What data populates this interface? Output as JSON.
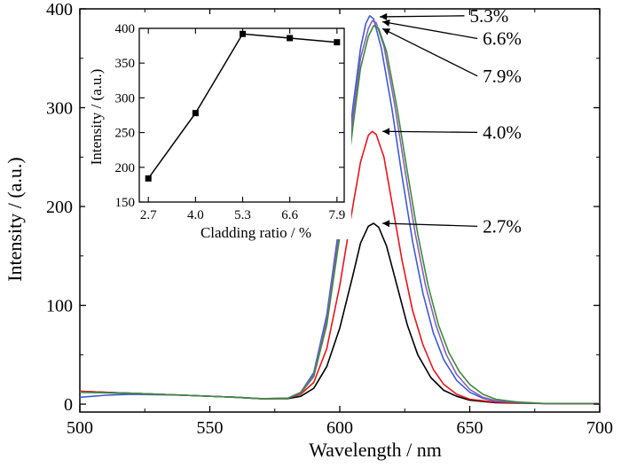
{
  "chart_data": [
    {
      "type": "line",
      "xlabel": "Wavelength / nm",
      "ylabel": "Intensity / (a.u.)",
      "xlim": [
        500,
        700
      ],
      "ylim": [
        -8,
        400
      ],
      "xticks": [
        500,
        550,
        600,
        650,
        700
      ],
      "yticks": [
        0,
        100,
        200,
        300,
        400
      ],
      "grid": false,
      "series": [
        {
          "label": "2.7%",
          "color": "#000000",
          "peak": 183,
          "points": [
            [
              500,
              13
            ],
            [
              520,
              11
            ],
            [
              540,
              9
            ],
            [
              560,
              7
            ],
            [
              570,
              5.5
            ],
            [
              580,
              5.5
            ],
            [
              585,
              8
            ],
            [
              590,
              16
            ],
            [
              595,
              38
            ],
            [
              600,
              77
            ],
            [
              605,
              130
            ],
            [
              608,
              163
            ],
            [
              611,
              180
            ],
            [
              613,
              183
            ],
            [
              615,
              179
            ],
            [
              618,
              160
            ],
            [
              622,
              120
            ],
            [
              626,
              80
            ],
            [
              630,
              50
            ],
            [
              635,
              27
            ],
            [
              640,
              14
            ],
            [
              645,
              8
            ],
            [
              650,
              4
            ],
            [
              660,
              1.5
            ],
            [
              680,
              0.5
            ],
            [
              700,
              0.5
            ]
          ]
        },
        {
          "label": "4.0%",
          "color": "#e8141c",
          "peak": 276,
          "points": [
            [
              500,
              13
            ],
            [
              520,
              11
            ],
            [
              540,
              9
            ],
            [
              560,
              7
            ],
            [
              570,
              5.5
            ],
            [
              580,
              6
            ],
            [
              585,
              10
            ],
            [
              590,
              22
            ],
            [
              595,
              56
            ],
            [
              600,
              120
            ],
            [
              605,
              200
            ],
            [
              608,
              245
            ],
            [
              611,
              272
            ],
            [
              612.5,
              276
            ],
            [
              614,
              273
            ],
            [
              617,
              250
            ],
            [
              620,
              205
            ],
            [
              624,
              145
            ],
            [
              628,
              95
            ],
            [
              632,
              60
            ],
            [
              636,
              35
            ],
            [
              640,
              20
            ],
            [
              645,
              10
            ],
            [
              650,
              5
            ],
            [
              660,
              2
            ],
            [
              680,
              0.5
            ],
            [
              700,
              0.5
            ]
          ]
        },
        {
          "label": "5.3%",
          "color": "#3c5bd6",
          "peak": 393,
          "points": [
            [
              500,
              7
            ],
            [
              505,
              8
            ],
            [
              510,
              9
            ],
            [
              520,
              10
            ],
            [
              540,
              9
            ],
            [
              560,
              7
            ],
            [
              570,
              5.5
            ],
            [
              580,
              6
            ],
            [
              585,
              12
            ],
            [
              590,
              32
            ],
            [
              595,
              90
            ],
            [
              600,
              185
            ],
            [
              605,
              300
            ],
            [
              608,
              360
            ],
            [
              610,
              385
            ],
            [
              611.5,
              393
            ],
            [
              613,
              390
            ],
            [
              616,
              360
            ],
            [
              620,
              300
            ],
            [
              624,
              230
            ],
            [
              628,
              165
            ],
            [
              632,
              112
            ],
            [
              636,
              72
            ],
            [
              640,
              45
            ],
            [
              645,
              24
            ],
            [
              650,
              12
            ],
            [
              655,
              6
            ],
            [
              660,
              3
            ],
            [
              680,
              0.5
            ],
            [
              700,
              0.5
            ]
          ]
        },
        {
          "label": "6.6%",
          "color": "#8a5fb4",
          "peak": 388,
          "points": [
            [
              500,
              12
            ],
            [
              520,
              11
            ],
            [
              540,
              9
            ],
            [
              560,
              7
            ],
            [
              570,
              5.5
            ],
            [
              580,
              6
            ],
            [
              585,
              12
            ],
            [
              590,
              30
            ],
            [
              595,
              85
            ],
            [
              600,
              178
            ],
            [
              605,
              290
            ],
            [
              608,
              350
            ],
            [
              611,
              380
            ],
            [
              612.5,
              388
            ],
            [
              614,
              386
            ],
            [
              617,
              362
            ],
            [
              621,
              305
            ],
            [
              625,
              238
            ],
            [
              629,
              173
            ],
            [
              633,
              120
            ],
            [
              637,
              80
            ],
            [
              641,
              50
            ],
            [
              645,
              30
            ],
            [
              650,
              15
            ],
            [
              655,
              7
            ],
            [
              660,
              3.5
            ],
            [
              680,
              0.5
            ],
            [
              700,
              0.5
            ]
          ]
        },
        {
          "label": "7.9%",
          "color": "#3e8a3e",
          "peak": 383,
          "points": [
            [
              500,
              12
            ],
            [
              520,
              11
            ],
            [
              540,
              9
            ],
            [
              560,
              7
            ],
            [
              570,
              5.5
            ],
            [
              580,
              6
            ],
            [
              585,
              11
            ],
            [
              590,
              28
            ],
            [
              595,
              80
            ],
            [
              600,
              170
            ],
            [
              605,
              280
            ],
            [
              608,
              340
            ],
            [
              611,
              372
            ],
            [
              613,
              383
            ],
            [
              615,
              380
            ],
            [
              618,
              357
            ],
            [
              622,
              300
            ],
            [
              626,
              235
            ],
            [
              630,
              172
            ],
            [
              634,
              120
            ],
            [
              638,
              80
            ],
            [
              642,
              52
            ],
            [
              646,
              33
            ],
            [
              650,
              20
            ],
            [
              655,
              10
            ],
            [
              660,
              5
            ],
            [
              670,
              1.5
            ],
            [
              680,
              0.5
            ],
            [
              700,
              0.5
            ]
          ]
        }
      ],
      "annotations": [
        {
          "text": "5.3%",
          "target": [
            612,
            392
          ],
          "label_at": [
            650,
            393
          ]
        },
        {
          "text": "6.6%",
          "target": [
            613,
            387
          ],
          "label_at": [
            655,
            370
          ]
        },
        {
          "text": "7.9%",
          "target": [
            613,
            380
          ],
          "label_at": [
            655,
            332
          ]
        },
        {
          "text": "4.0%",
          "target": [
            613,
            276
          ],
          "label_at": [
            655,
            275
          ]
        },
        {
          "text": "2.7%",
          "target": [
            613,
            183
          ],
          "label_at": [
            655,
            180
          ]
        }
      ]
    },
    {
      "type": "line",
      "xlabel": "Cladding ratio / %",
      "ylabel": "Intensity / (a.u.)",
      "xlim": [
        2.45,
        8.1
      ],
      "ylim": [
        150,
        400
      ],
      "xticks": [
        2.7,
        4.0,
        5.3,
        6.6,
        7.9
      ],
      "xtick_labels": [
        "2.7",
        "4.0",
        "5.3",
        "6.6",
        "7.9"
      ],
      "yticks": [
        150,
        200,
        250,
        300,
        350,
        400
      ],
      "grid": false,
      "series": [
        {
          "color": "#000000",
          "marker": "square",
          "x": [
            2.7,
            4.0,
            5.3,
            6.6,
            7.9
          ],
          "y": [
            184,
            278,
            392,
            386,
            380
          ]
        }
      ]
    }
  ]
}
